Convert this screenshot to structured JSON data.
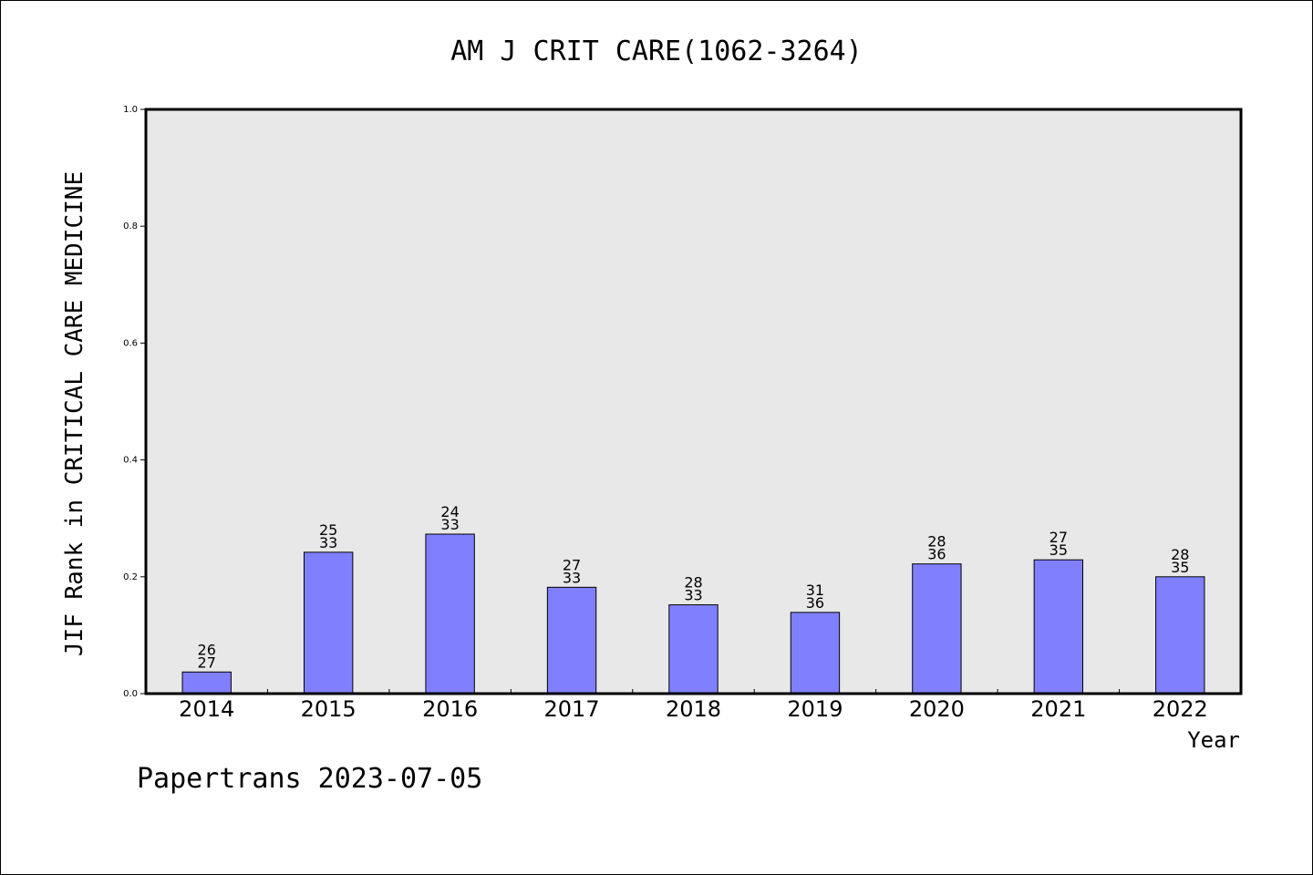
{
  "chart_data": {
    "type": "bar",
    "title": "AM J CRIT CARE(1062-3264)",
    "xlabel": "Year",
    "ylabel": "JIF Rank in CRITICAL CARE MEDICINE",
    "ylim": [
      0,
      1.0
    ],
    "yticks": [
      "0.0",
      "0.2",
      "0.4",
      "0.6",
      "0.8",
      "1.0"
    ],
    "ytick_values": [
      0,
      0.2,
      0.4,
      0.6,
      0.8,
      1.0
    ],
    "categories": [
      "2014",
      "2015",
      "2016",
      "2017",
      "2018",
      "2019",
      "2020",
      "2021",
      "2022"
    ],
    "values": [
      0.037,
      0.242,
      0.273,
      0.182,
      0.152,
      0.139,
      0.222,
      0.229,
      0.2
    ],
    "rank_labels": [
      {
        "rank": "26",
        "total": "27"
      },
      {
        "rank": "25",
        "total": "33"
      },
      {
        "rank": "24",
        "total": "33"
      },
      {
        "rank": "27",
        "total": "33"
      },
      {
        "rank": "28",
        "total": "33"
      },
      {
        "rank": "31",
        "total": "36"
      },
      {
        "rank": "28",
        "total": "36"
      },
      {
        "rank": "27",
        "total": "35"
      },
      {
        "rank": "28",
        "total": "35"
      }
    ],
    "grid": false,
    "bar_color": "#8080ff",
    "plot_background": "#e8e8e8"
  },
  "footer": "Papertrans 2023-07-05"
}
